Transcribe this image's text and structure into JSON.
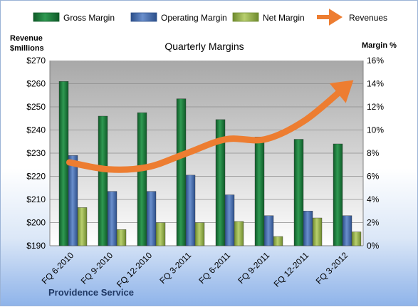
{
  "chart_data": {
    "type": "bar",
    "title": "Quarterly Margins",
    "categories": [
      "FQ 6-2010",
      "FQ 9-2010",
      "FQ 12-2010",
      "FQ 3-2011",
      "FQ 6-2011",
      "FQ 9-2011",
      "FQ 12-2011",
      "FQ 3-2012"
    ],
    "series": [
      {
        "name": "Gross Margin",
        "axis": "right",
        "color": "#1e7a3c",
        "values": [
          14.2,
          11.2,
          11.5,
          12.7,
          10.9,
          9.4,
          9.2,
          8.8
        ]
      },
      {
        "name": "Operating Margin",
        "axis": "right",
        "color": "#4a72b0",
        "values": [
          7.8,
          4.7,
          4.7,
          6.1,
          4.4,
          2.6,
          3.0,
          2.6
        ]
      },
      {
        "name": "Net Margin",
        "axis": "right",
        "color": "#98b452",
        "values": [
          3.3,
          1.4,
          2.0,
          2.0,
          2.1,
          0.8,
          2.4,
          1.2
        ]
      }
    ],
    "line_series": {
      "name": "Revenues",
      "axis": "left",
      "color": "#ed7d31",
      "values": [
        226,
        223,
        224,
        230,
        236,
        236,
        244,
        258
      ]
    },
    "left_axis": {
      "label_line1": "Revenue",
      "label_line2": "$millions",
      "min": 190,
      "max": 270,
      "step": 10,
      "tick_prefix": "$"
    },
    "right_axis": {
      "label": "Margin  %",
      "min": 0,
      "max": 16,
      "step": 2,
      "tick_suffix": "%"
    },
    "grid": true,
    "legend": "top",
    "footer": "Providence Service"
  }
}
